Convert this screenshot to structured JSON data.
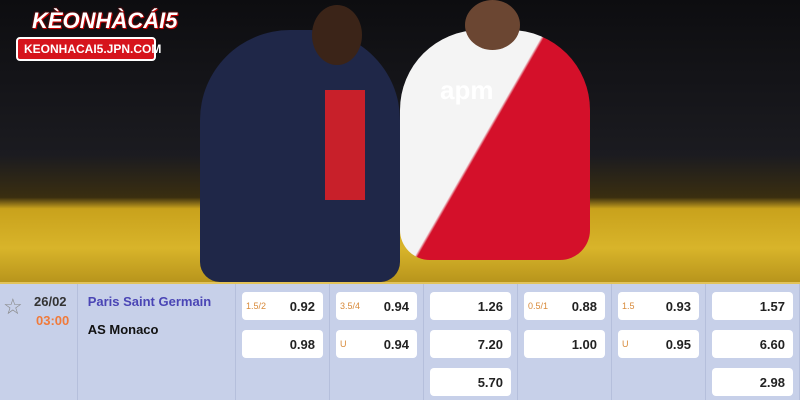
{
  "brand": {
    "name": "KÈONHÀCÁI5",
    "url": "KEONHACAI5.JPN.COM"
  },
  "match": {
    "date": "26/02",
    "time": "03:00",
    "home": "Paris Saint Germain",
    "away": "AS Monaco",
    "favorite_icon": "star-outline-icon"
  },
  "photo": {
    "jersey_sponsor": "apm"
  },
  "odds": [
    [
      {
        "h": "1.5/2",
        "v": "0.92"
      },
      {
        "h": "",
        "v": "0.98"
      }
    ],
    [
      {
        "h": "3.5/4",
        "v": "0.94"
      },
      {
        "h": "U",
        "v": "0.94"
      }
    ],
    [
      {
        "h": "",
        "v": "1.26"
      },
      {
        "h": "",
        "v": "7.20"
      },
      {
        "h": "",
        "v": "5.70"
      }
    ],
    [
      {
        "h": "0.5/1",
        "v": "0.88"
      },
      {
        "h": "",
        "v": "1.00"
      }
    ],
    [
      {
        "h": "1.5",
        "v": "0.93"
      },
      {
        "h": "U",
        "v": "0.95"
      }
    ],
    [
      {
        "h": "",
        "v": "1.57"
      },
      {
        "h": "",
        "v": "6.60"
      },
      {
        "h": "",
        "v": "2.98"
      }
    ]
  ]
}
